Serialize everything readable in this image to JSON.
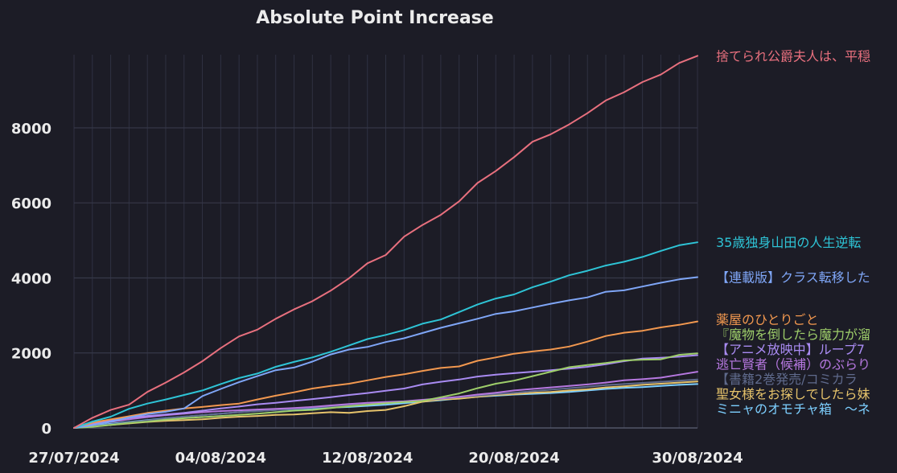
{
  "chart_data": {
    "type": "line",
    "title": "Absolute Point Increase",
    "xlabel": "",
    "ylabel": "",
    "x_start": "27/07/2024",
    "x_end": "30/08/2024",
    "x_ticks": [
      "27/07/2024",
      "04/08/2024",
      "12/08/2024",
      "20/08/2024",
      "30/08/2024"
    ],
    "y_ticks": [
      0,
      2000,
      4000,
      6000,
      8000
    ],
    "ylim": [
      0,
      9950
    ],
    "grid": true,
    "legend": "right",
    "series": [
      {
        "name": "捨てられ公爵夫人は、平穏",
        "color": "#e8707e",
        "values": [
          0,
          270,
          480,
          620,
          960,
          1210,
          1480,
          1780,
          2130,
          2440,
          2620,
          2910,
          3160,
          3380,
          3660,
          3990,
          4390,
          4610,
          5100,
          5410,
          5680,
          6040,
          6530,
          6850,
          7220,
          7630,
          7830,
          8090,
          8390,
          8730,
          8950,
          9220,
          9420,
          9730,
          9920
        ]
      },
      {
        "name": "35歳独身山田の人生逆転",
        "color": "#2ec4d6",
        "values": [
          0,
          170,
          300,
          510,
          650,
          760,
          880,
          1000,
          1170,
          1330,
          1450,
          1630,
          1760,
          1880,
          2030,
          2200,
          2370,
          2480,
          2610,
          2780,
          2890,
          3090,
          3290,
          3450,
          3560,
          3750,
          3900,
          4070,
          4190,
          4330,
          4430,
          4560,
          4720,
          4870,
          4950
        ]
      },
      {
        "name": "【連載版】クラス転移した",
        "color": "#7fa6f7",
        "values": [
          0,
          70,
          170,
          280,
          370,
          430,
          520,
          850,
          1040,
          1220,
          1380,
          1540,
          1610,
          1770,
          1960,
          2090,
          2160,
          2290,
          2390,
          2530,
          2670,
          2790,
          2910,
          3040,
          3110,
          3210,
          3310,
          3400,
          3480,
          3630,
          3670,
          3770,
          3870,
          3960,
          4020
        ]
      },
      {
        "name": "薬屋のひとりごと",
        "color": "#f2984f",
        "values": [
          0,
          140,
          230,
          310,
          400,
          460,
          520,
          560,
          610,
          650,
          760,
          860,
          950,
          1050,
          1120,
          1180,
          1270,
          1360,
          1430,
          1520,
          1600,
          1640,
          1790,
          1880,
          1980,
          2040,
          2090,
          2170,
          2300,
          2450,
          2540,
          2590,
          2680,
          2750,
          2840
        ]
      },
      {
        "name": "『魔物を倒したら魔力が溜",
        "color": "#9ece6a",
        "values": [
          0,
          30,
          80,
          130,
          170,
          220,
          260,
          290,
          320,
          350,
          380,
          420,
          460,
          480,
          530,
          580,
          620,
          660,
          690,
          720,
          820,
          920,
          1060,
          1180,
          1260,
          1380,
          1500,
          1620,
          1680,
          1730,
          1800,
          1820,
          1830,
          1950,
          1990
        ]
      },
      {
        "name": "【アニメ放映中】ループ7",
        "color": "#a98bf2",
        "values": [
          0,
          110,
          200,
          270,
          320,
          360,
          400,
          460,
          520,
          570,
          630,
          670,
          720,
          770,
          820,
          880,
          930,
          990,
          1050,
          1160,
          1230,
          1290,
          1370,
          1420,
          1460,
          1500,
          1540,
          1580,
          1630,
          1700,
          1780,
          1850,
          1870,
          1900,
          1940
        ]
      },
      {
        "name": "逃亡賢者（候補）のぶらり",
        "color": "#b678e0",
        "values": [
          0,
          90,
          160,
          230,
          290,
          340,
          380,
          420,
          450,
          470,
          490,
          510,
          530,
          560,
          600,
          640,
          670,
          690,
          710,
          750,
          790,
          830,
          890,
          940,
          1000,
          1040,
          1080,
          1120,
          1160,
          1210,
          1270,
          1300,
          1340,
          1420,
          1500
        ]
      },
      {
        "name": "【書籍2巻発売/コミカラ",
        "color": "#5f6a8c",
        "values": [
          0,
          40,
          90,
          150,
          200,
          250,
          300,
          340,
          380,
          420,
          450,
          480,
          510,
          540,
          570,
          600,
          630,
          660,
          700,
          740,
          780,
          820,
          860,
          900,
          940,
          980,
          1020,
          1060,
          1100,
          1140,
          1170,
          1200,
          1230,
          1260,
          1290
        ]
      },
      {
        "name": "聖女様をお探しでしたら妹",
        "color": "#e6c36b",
        "values": [
          0,
          40,
          80,
          120,
          160,
          190,
          210,
          230,
          270,
          300,
          320,
          350,
          360,
          390,
          420,
          400,
          450,
          480,
          580,
          700,
          760,
          780,
          830,
          880,
          900,
          940,
          960,
          1000,
          1030,
          1080,
          1110,
          1150,
          1180,
          1210,
          1240
        ]
      },
      {
        "name": "ミニャのオモチャ箱　～ネ",
        "color": "#7dcfff",
        "values": [
          0,
          60,
          110,
          160,
          210,
          260,
          300,
          340,
          380,
          420,
          450,
          480,
          500,
          520,
          540,
          560,
          590,
          620,
          660,
          700,
          740,
          790,
          830,
          860,
          890,
          910,
          930,
          960,
          1000,
          1040,
          1070,
          1090,
          1120,
          1150,
          1170
        ]
      }
    ]
  }
}
